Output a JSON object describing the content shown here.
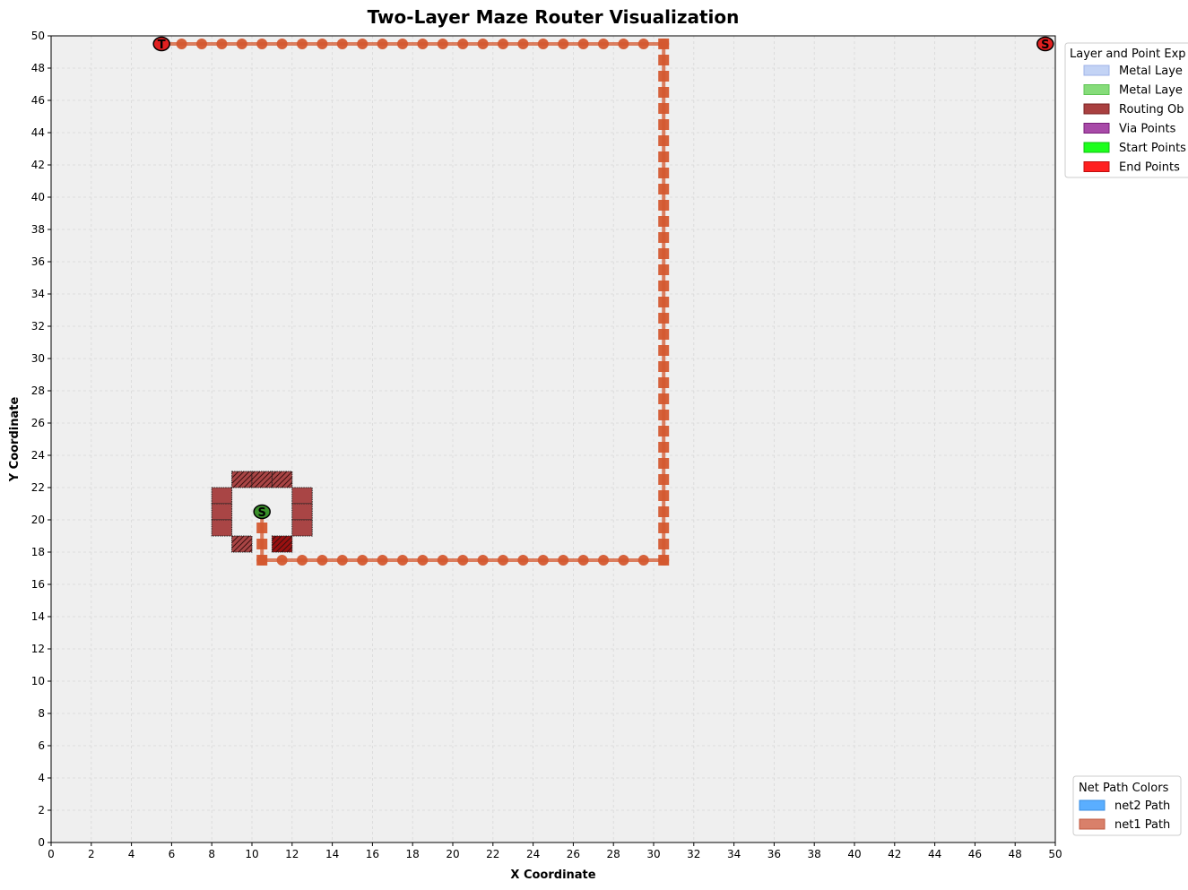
{
  "chart_data": {
    "type": "scatter",
    "title": "Two-Layer Maze Router Visualization",
    "xlabel": "X Coordinate",
    "ylabel": "Y Coordinate",
    "xlim": [
      0,
      50
    ],
    "ylim": [
      0,
      50
    ],
    "x_ticks": [
      0,
      2,
      4,
      6,
      8,
      10,
      12,
      14,
      16,
      18,
      20,
      22,
      24,
      26,
      28,
      30,
      32,
      34,
      36,
      38,
      40,
      42,
      44,
      46,
      48,
      50
    ],
    "y_ticks": [
      0,
      2,
      4,
      6,
      8,
      10,
      12,
      14,
      16,
      18,
      20,
      22,
      24,
      26,
      28,
      30,
      32,
      34,
      36,
      38,
      40,
      42,
      44,
      46,
      48,
      50
    ],
    "grid": true,
    "background": "#efefef",
    "obstacles": [
      {
        "x": 9,
        "y": 22,
        "hatched": true
      },
      {
        "x": 10,
        "y": 22,
        "hatched": true
      },
      {
        "x": 11,
        "y": 22,
        "hatched": true
      },
      {
        "x": 8,
        "y": 21,
        "hatched": false
      },
      {
        "x": 8,
        "y": 20,
        "hatched": false
      },
      {
        "x": 8,
        "y": 19,
        "hatched": false
      },
      {
        "x": 12,
        "y": 21,
        "hatched": false
      },
      {
        "x": 12,
        "y": 20,
        "hatched": false
      },
      {
        "x": 12,
        "y": 19,
        "hatched": false
      },
      {
        "x": 9,
        "y": 18,
        "hatched": true
      },
      {
        "x": 11,
        "y": 18,
        "hatched": true,
        "dark": true
      }
    ],
    "series": [
      {
        "name": "net1 Path",
        "color": "#d4582f",
        "path": [
          [
            10.5,
            20.5
          ],
          [
            10.5,
            17.5
          ],
          [
            30.5,
            17.5
          ],
          [
            30.5,
            49.5
          ],
          [
            5.5,
            49.5
          ]
        ],
        "layer1_markers": "circle",
        "layer2_markers": "square"
      },
      {
        "name": "net2 Path",
        "color": "#4da6ff",
        "path": []
      }
    ],
    "points": [
      {
        "label": "S",
        "x": 10.5,
        "y": 20.5,
        "fill": "#3a8f2a"
      },
      {
        "label": "T",
        "x": 5.5,
        "y": 49.5,
        "fill": "#e02020"
      },
      {
        "label": "S",
        "x": 49.5,
        "y": 49.5,
        "fill": "#e02020"
      }
    ],
    "legends": [
      {
        "title": "Layer and Point Exp",
        "placement": "top-right",
        "entries": [
          {
            "label": "Metal Laye",
            "color": "#c3d3f5",
            "edge": "#9fb3e8"
          },
          {
            "label": "Metal Laye",
            "color": "#86dc7a",
            "edge": "#5fc454"
          },
          {
            "label": "Routing Ob",
            "color": "#a94040",
            "edge": "#7a2222"
          },
          {
            "label": "Via Points",
            "color": "#a84aa8",
            "edge": "#7a1f7a"
          },
          {
            "label": "Start Points",
            "color": "#1dff1d",
            "edge": "#10c010"
          },
          {
            "label": "End Points",
            "color": "#ff2020",
            "edge": "#c01010"
          }
        ]
      },
      {
        "title": "Net Path Colors",
        "placement": "bottom-right",
        "entries": [
          {
            "label": "net2 Path",
            "color": "#5aaeff",
            "edge": "#3a8ee0"
          },
          {
            "label": "net1 Path",
            "color": "#d9806a",
            "edge": "#c05a40"
          }
        ]
      }
    ]
  }
}
